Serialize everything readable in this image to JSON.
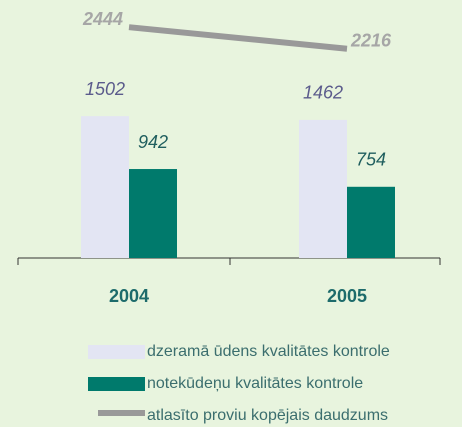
{
  "chart_data": {
    "type": "bar",
    "categories": [
      "2004",
      "2005"
    ],
    "ylim": [
      0,
      2700
    ],
    "series": [
      {
        "name": "dzeramā ūdens kvalitātes kontrole",
        "color": "#e3e5f3",
        "label_color": "#5b5b8c",
        "values": [
          1502,
          1462
        ]
      },
      {
        "name": "notekūdeņu kvalitātes kontrole",
        "color": "#007a6c",
        "label_color": "#1f5e5e",
        "values": [
          942,
          754
        ]
      },
      {
        "name": "atlasīto proviu kopējais daudzums",
        "color": "#999999",
        "type": "line",
        "values": [
          2444,
          2216
        ]
      }
    ]
  }
}
